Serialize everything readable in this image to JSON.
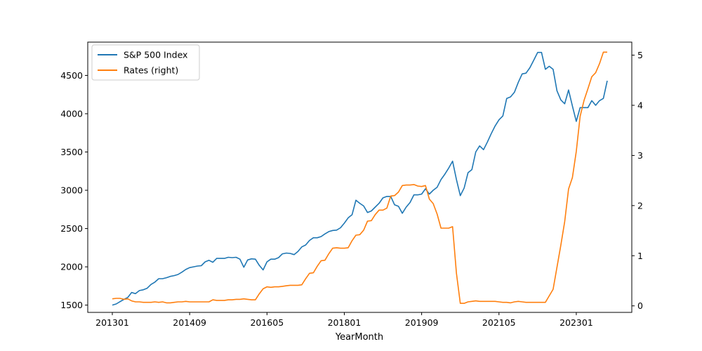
{
  "chart_data": {
    "type": "line",
    "xlabel": "YearMonth",
    "x_tick_labels": [
      "201301",
      "201409",
      "201605",
      "201801",
      "201909",
      "202105",
      "202301"
    ],
    "yticks_left": [
      1500,
      2000,
      2500,
      3000,
      3500,
      4000,
      4500
    ],
    "yticks_right": [
      0,
      1,
      2,
      3,
      4,
      5
    ],
    "ylim_left": [
      1405,
      4935
    ],
    "ylim_right": [
      -0.13,
      5.26
    ],
    "legend_position": "upper-left",
    "series": [
      {
        "name": "S&P 500 Index",
        "axis": "left",
        "color": "#1f77b4",
        "values": [
          1500,
          1515,
          1545,
          1575,
          1600,
          1665,
          1650,
          1690,
          1700,
          1720,
          1770,
          1800,
          1845,
          1845,
          1858,
          1875,
          1885,
          1900,
          1930,
          1965,
          1990,
          2000,
          2010,
          2015,
          2065,
          2085,
          2060,
          2110,
          2110,
          2110,
          2125,
          2120,
          2125,
          2100,
          1995,
          2090,
          2105,
          2100,
          2020,
          1960,
          2065,
          2100,
          2100,
          2120,
          2170,
          2180,
          2175,
          2160,
          2200,
          2260,
          2285,
          2345,
          2380,
          2380,
          2395,
          2430,
          2460,
          2475,
          2480,
          2510,
          2570,
          2640,
          2680,
          2870,
          2830,
          2795,
          2710,
          2730,
          2780,
          2830,
          2900,
          2920,
          2920,
          2810,
          2790,
          2700,
          2780,
          2840,
          2940,
          2940,
          2950,
          3020,
          2950,
          3000,
          3040,
          3140,
          3210,
          3290,
          3380,
          3140,
          2930,
          3030,
          3230,
          3270,
          3500,
          3580,
          3530,
          3630,
          3740,
          3840,
          3920,
          3970,
          4200,
          4220,
          4280,
          4410,
          4520,
          4530,
          4600,
          4700,
          4800,
          4800,
          4580,
          4620,
          4580,
          4300,
          4180,
          4130,
          4310,
          4100,
          3900,
          4080,
          4080,
          4080,
          4170,
          4110,
          4170,
          4200,
          4430
        ]
      },
      {
        "name": "Rates (right)",
        "axis": "right",
        "color": "#ff7f0e",
        "values": [
          0.14,
          0.15,
          0.15,
          0.13,
          0.14,
          0.1,
          0.08,
          0.08,
          0.07,
          0.07,
          0.07,
          0.08,
          0.07,
          0.08,
          0.06,
          0.06,
          0.07,
          0.08,
          0.08,
          0.09,
          0.08,
          0.08,
          0.08,
          0.08,
          0.08,
          0.08,
          0.12,
          0.11,
          0.11,
          0.11,
          0.12,
          0.12,
          0.13,
          0.13,
          0.14,
          0.13,
          0.12,
          0.12,
          0.24,
          0.34,
          0.38,
          0.37,
          0.38,
          0.38,
          0.39,
          0.4,
          0.41,
          0.41,
          0.41,
          0.42,
          0.54,
          0.65,
          0.66,
          0.79,
          0.9,
          0.91,
          1.04,
          1.15,
          1.16,
          1.15,
          1.15,
          1.16,
          1.3,
          1.41,
          1.42,
          1.51,
          1.69,
          1.7,
          1.82,
          1.91,
          1.91,
          1.95,
          2.19,
          2.2,
          2.27,
          2.4,
          2.41,
          2.41,
          2.42,
          2.39,
          2.38,
          2.4,
          2.13,
          2.04,
          1.83,
          1.55,
          1.55,
          1.55,
          1.58,
          0.65,
          0.05,
          0.05,
          0.08,
          0.09,
          0.1,
          0.09,
          0.09,
          0.09,
          0.09,
          0.09,
          0.08,
          0.07,
          0.07,
          0.06,
          0.08,
          0.09,
          0.08,
          0.07,
          0.07,
          0.07,
          0.07,
          0.07,
          0.07,
          0.2,
          0.33,
          0.77,
          1.21,
          1.68,
          2.33,
          2.56,
          3.08,
          3.78,
          4.1,
          4.33,
          4.57,
          4.65,
          4.83,
          5.06,
          5.06
        ]
      }
    ]
  }
}
